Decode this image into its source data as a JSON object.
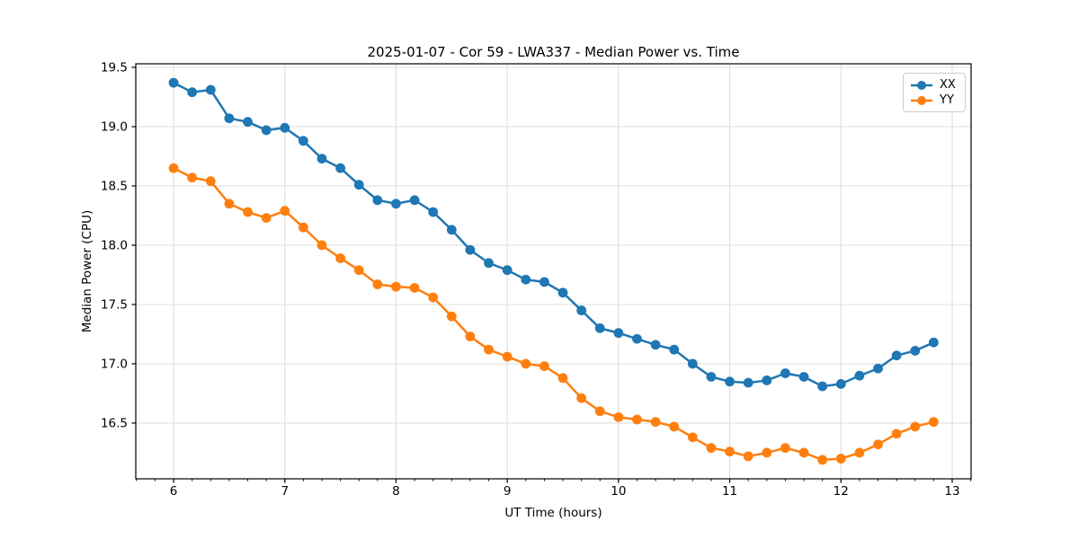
{
  "chart_data": {
    "type": "line",
    "title": "2025-01-07 - Cor 59 - LWA337 - Median Power vs. Time",
    "xlabel": "UT Time (hours)",
    "ylabel": "Median Power (CPU)",
    "xlim": [
      5.66,
      13.17
    ],
    "ylim": [
      16.03,
      19.53
    ],
    "xticks": [
      6,
      7,
      8,
      9,
      10,
      11,
      12,
      13
    ],
    "xtick_labels": [
      "6",
      "7",
      "8",
      "9",
      "10",
      "11",
      "12",
      "13"
    ],
    "yticks": [
      16.5,
      17.0,
      17.5,
      18.0,
      18.5,
      19.0,
      19.5
    ],
    "ytick_labels": [
      "16.5",
      "17.0",
      "17.5",
      "18.0",
      "18.5",
      "19.0",
      "19.5"
    ],
    "x_minor_step": 0.166667,
    "grid": true,
    "grid_color": "#dcdcdc",
    "legend_position": "upper right",
    "x": [
      6.0,
      6.1667,
      6.3333,
      6.5,
      6.6667,
      6.8333,
      7.0,
      7.1667,
      7.3333,
      7.5,
      7.6667,
      7.8333,
      8.0,
      8.1667,
      8.3333,
      8.5,
      8.6667,
      8.8333,
      9.0,
      9.1667,
      9.3333,
      9.5,
      9.6667,
      9.8333,
      10.0,
      10.1667,
      10.3333,
      10.5,
      10.6667,
      10.8333,
      11.0,
      11.1667,
      11.3333,
      11.5,
      11.6667,
      11.8333,
      12.0,
      12.1667,
      12.3333,
      12.5,
      12.6667,
      12.8333
    ],
    "series": [
      {
        "name": "XX",
        "color": "#1f77b4",
        "values": [
          19.37,
          19.29,
          19.31,
          19.07,
          19.04,
          18.97,
          18.99,
          18.88,
          18.73,
          18.65,
          18.51,
          18.38,
          18.35,
          18.38,
          18.28,
          18.13,
          17.96,
          17.85,
          17.79,
          17.71,
          17.69,
          17.6,
          17.45,
          17.3,
          17.26,
          17.21,
          17.16,
          17.12,
          17.0,
          16.89,
          16.85,
          16.84,
          16.86,
          16.92,
          16.89,
          16.81,
          16.83,
          16.9,
          16.96,
          17.07,
          17.11,
          17.18
        ]
      },
      {
        "name": "YY",
        "color": "#ff7f0e",
        "values": [
          18.65,
          18.57,
          18.54,
          18.35,
          18.28,
          18.23,
          18.29,
          18.15,
          18.0,
          17.89,
          17.79,
          17.67,
          17.65,
          17.64,
          17.56,
          17.4,
          17.23,
          17.12,
          17.06,
          17.0,
          16.98,
          16.88,
          16.71,
          16.6,
          16.55,
          16.53,
          16.51,
          16.47,
          16.38,
          16.29,
          16.26,
          16.22,
          16.25,
          16.29,
          16.25,
          16.19,
          16.2,
          16.25,
          16.32,
          16.41,
          16.47,
          16.51
        ]
      }
    ]
  }
}
